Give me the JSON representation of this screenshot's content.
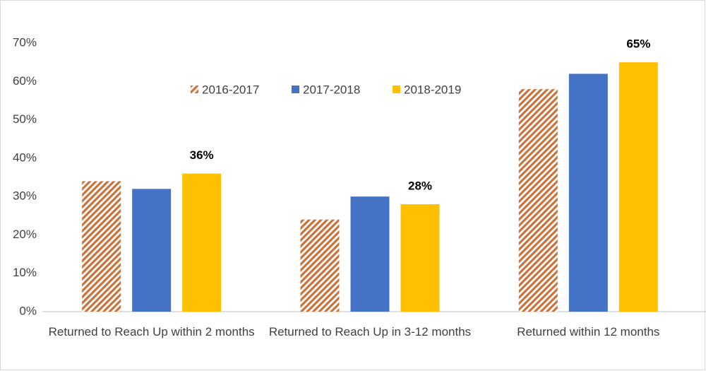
{
  "chart_data": {
    "type": "bar",
    "categories": [
      "Returned to Reach Up within 2 months",
      "Returned to Reach Up in  3-12 months",
      "Returned within 12 months"
    ],
    "series": [
      {
        "name": "2016-2017",
        "color": "#c8723c",
        "hatch": true,
        "values": [
          34,
          24,
          58
        ]
      },
      {
        "name": "2017-2018",
        "color": "#4472c4",
        "values": [
          32,
          30,
          62
        ]
      },
      {
        "name": "2018-2019",
        "color": "#ffc000",
        "values": [
          36,
          28,
          65
        ],
        "value_labels": [
          "36%",
          "28%",
          "65%"
        ]
      }
    ],
    "ylim": [
      0,
      70
    ],
    "yticks": [
      {
        "value": 0,
        "label": "0%"
      },
      {
        "value": 10,
        "label": "10%"
      },
      {
        "value": 20,
        "label": "20%"
      },
      {
        "value": 30,
        "label": "30%"
      },
      {
        "value": 40,
        "label": "40%"
      },
      {
        "value": 50,
        "label": "50%"
      },
      {
        "value": 60,
        "label": "60%"
      },
      {
        "value": 70,
        "label": "70%"
      }
    ],
    "grid": false
  }
}
